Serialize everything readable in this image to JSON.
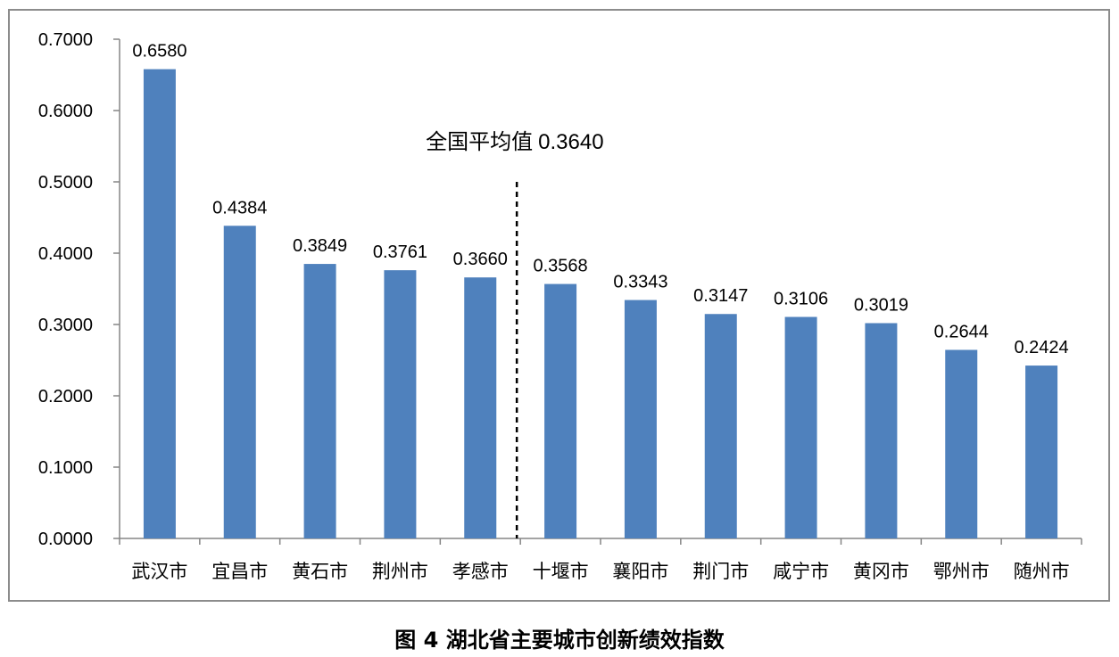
{
  "caption": "图 4 湖北省主要城市创新绩效指数",
  "chart_data": {
    "type": "bar",
    "categories": [
      "武汉市",
      "宜昌市",
      "黄石市",
      "荆州市",
      "孝感市",
      "十堰市",
      "襄阳市",
      "荆门市",
      "咸宁市",
      "黄冈市",
      "鄂州市",
      "随州市"
    ],
    "values": [
      0.658,
      0.4384,
      0.3849,
      0.3761,
      0.366,
      0.3568,
      0.3343,
      0.3147,
      0.3106,
      0.3019,
      0.2644,
      0.2424
    ],
    "value_labels": [
      "0.6580",
      "0.4384",
      "0.3849",
      "0.3761",
      "0.3660",
      "0.3568",
      "0.3343",
      "0.3147",
      "0.3106",
      "0.3019",
      "0.2644",
      "0.2424"
    ],
    "ylim": [
      0,
      0.7
    ],
    "yticks": [
      0,
      0.1,
      0.2,
      0.3,
      0.4,
      0.5,
      0.6,
      0.7
    ],
    "ytick_labels": [
      "0.0000",
      "0.1000",
      "0.2000",
      "0.3000",
      "0.4000",
      "0.5000",
      "0.6000",
      "0.7000"
    ],
    "bar_color": "#4f81bd",
    "grid": false,
    "reference_line": {
      "label": "全国平均值",
      "value_label": "0.3640",
      "style": "dashed",
      "position": "between 孝感市 and 十堰市"
    }
  }
}
